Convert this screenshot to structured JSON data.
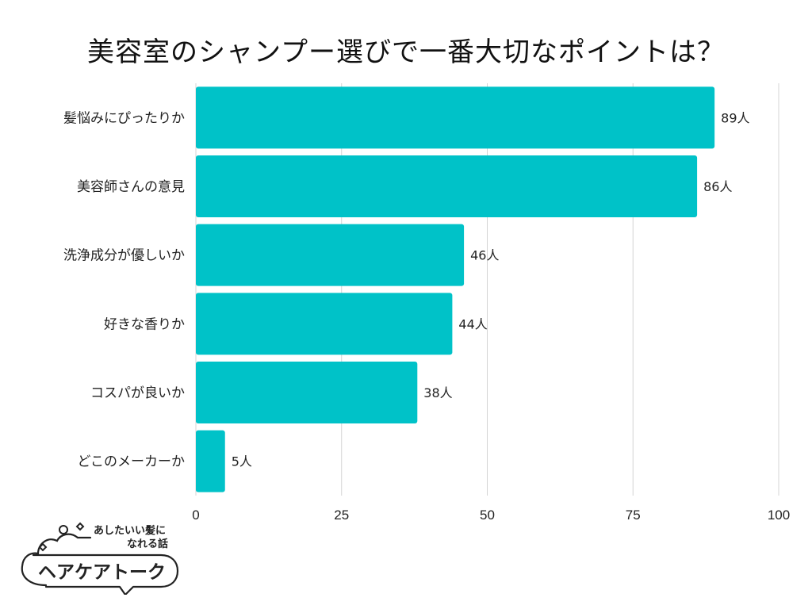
{
  "chart_data": {
    "type": "bar",
    "orientation": "horizontal",
    "title": "美容室のシャンプー選びで一番大切なポイントは？",
    "categories": [
      "髪悩みにぴったりか",
      "美容師さんの意見",
      "洗浄成分が優しいか",
      "好きな香りか",
      "コスパが良いか",
      "どこのメーカーか"
    ],
    "values": [
      89,
      86,
      46,
      44,
      38,
      5
    ],
    "value_labels": [
      "89人",
      "86人",
      "46人",
      "44人",
      "38人",
      "5人"
    ],
    "xlim": [
      0,
      100
    ],
    "xticks": [
      0,
      25,
      50,
      75,
      100
    ],
    "xlabel": "",
    "ylabel": "",
    "grid": true,
    "bar_color": "#00c2c8"
  },
  "logo": {
    "tagline_line1": "あしたいい髪に",
    "tagline_line2": "なれる話",
    "name": "ヘアケアトーク"
  }
}
